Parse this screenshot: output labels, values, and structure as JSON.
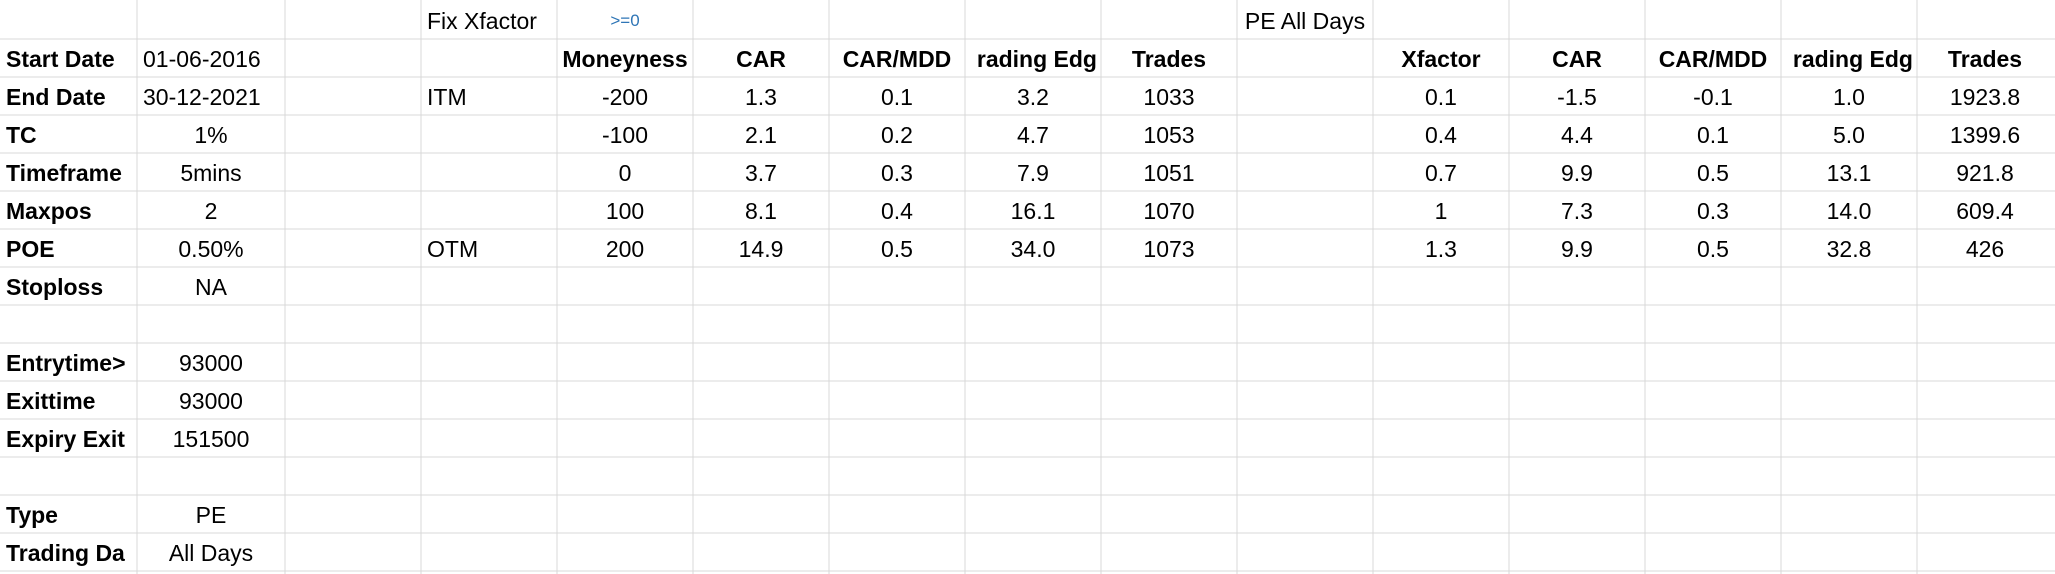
{
  "header": {
    "fix_xfactor_label": "Fix Xfactor",
    "condition": ">=0",
    "section_title": "PE All Days"
  },
  "params": [
    {
      "label": "Start Date",
      "value": "01-06-2016"
    },
    {
      "label": "End Date",
      "value": "30-12-2021"
    },
    {
      "label": "TC",
      "value": "1%"
    },
    {
      "label": "Timeframe",
      "value": "5mins"
    },
    {
      "label": "Maxpos",
      "value": "2"
    },
    {
      "label": "POE",
      "value": "0.50%"
    },
    {
      "label": "Stoploss",
      "value": "NA"
    },
    {
      "label": "Entrytime>",
      "value": "93000"
    },
    {
      "label": "Exittime",
      "value": "93000"
    },
    {
      "label": "Expiry Exit",
      "value": "151500"
    },
    {
      "label": "Type",
      "value": "PE"
    },
    {
      "label": "Trading Da",
      "value": "All Days"
    }
  ],
  "left_table": {
    "columns": [
      "Moneyness",
      "CAR",
      "CAR/MDD",
      "rading Edg",
      "Trades"
    ],
    "row_labels": [
      "ITM",
      "",
      "",
      "",
      "OTM"
    ],
    "rows": [
      [
        "-200",
        "1.3",
        "0.1",
        "3.2",
        "1033"
      ],
      [
        "-100",
        "2.1",
        "0.2",
        "4.7",
        "1053"
      ],
      [
        "0",
        "3.7",
        "0.3",
        "7.9",
        "1051"
      ],
      [
        "100",
        "8.1",
        "0.4",
        "16.1",
        "1070"
      ],
      [
        "200",
        "14.9",
        "0.5",
        "34.0",
        "1073"
      ]
    ]
  },
  "right_table": {
    "columns": [
      "Xfactor",
      "CAR",
      "CAR/MDD",
      "rading Edg",
      "Trades"
    ],
    "rows": [
      [
        "0.1",
        "-1.5",
        "-0.1",
        "1.0",
        "1923.8"
      ],
      [
        "0.4",
        "4.4",
        "0.1",
        "5.0",
        "1399.6"
      ],
      [
        "0.7",
        "9.9",
        "0.5",
        "13.1",
        "921.8"
      ],
      [
        "1",
        "7.3",
        "0.3",
        "14.0",
        "609.4"
      ],
      [
        "1.3",
        "9.9",
        "0.5",
        "32.8",
        "426"
      ]
    ]
  }
}
